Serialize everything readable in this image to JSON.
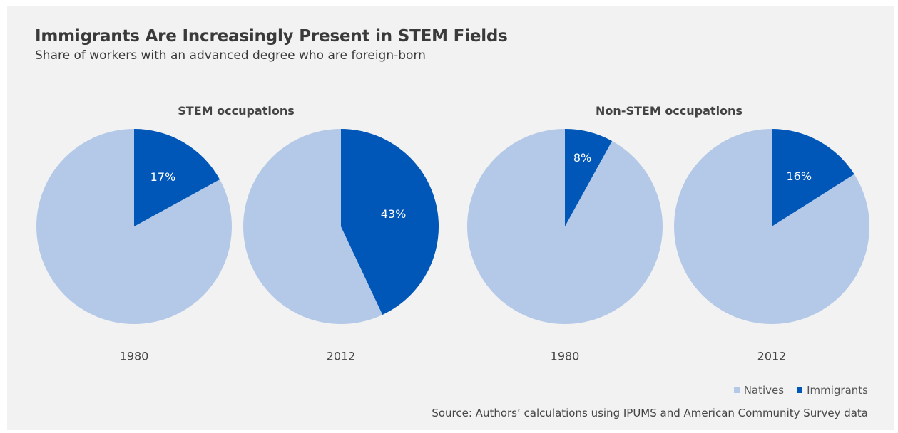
{
  "title": "Immigrants Are Increasingly Present in STEM Fields",
  "subtitle": "Share of workers with an advanced degree who are foreign-born",
  "legend": {
    "natives": "Natives",
    "immigrants": "Immigrants"
  },
  "source": "Source: Authors’ calculations using IPUMS and American Community Survey data",
  "colors": {
    "natives": "#b4c9e8",
    "immigrants": "#0057b7",
    "background": "#f2f2f2"
  },
  "chart_data": {
    "type": "pie",
    "groups": [
      {
        "name": "STEM occupations",
        "pies": [
          {
            "year": "1980",
            "immigrants": 17,
            "label": "17%"
          },
          {
            "year": "2012",
            "immigrants": 43,
            "label": "43%"
          }
        ]
      },
      {
        "name": "Non-STEM occupations",
        "pies": [
          {
            "year": "1980",
            "immigrants": 8,
            "label": "8%"
          },
          {
            "year": "2012",
            "immigrants": 16,
            "label": "16%"
          }
        ]
      }
    ]
  }
}
